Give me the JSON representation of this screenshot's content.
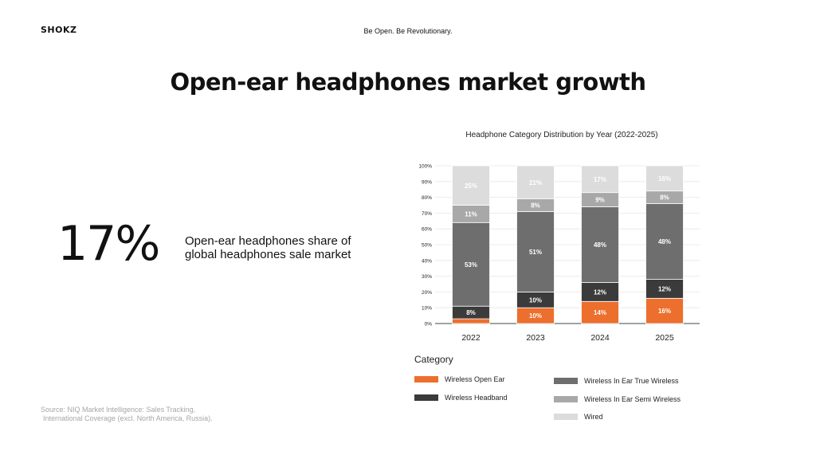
{
  "header": {
    "logo_text": "SHOKZ",
    "tagline": "Be Open. Be Revolutionary."
  },
  "title": "Open-ear headphones market growth",
  "stat": {
    "value": "17%",
    "description": "Open-ear headphones share of global headphones sale market"
  },
  "source": {
    "line1": "Source: NIQ Market Intelligence: Sales Tracking,",
    "line2": "International Coverage (excl. North America, Russia)."
  },
  "legend": {
    "title": "Category"
  },
  "colors": {
    "open_ear": "#ec6f2d",
    "headband": "#3b3b3b",
    "true_wireless": "#6e6e6e",
    "semi_wireless": "#a8a8a8",
    "wired": "#dcdcdc"
  },
  "chart_data": {
    "type": "bar",
    "stacked": true,
    "title": "Headphone Category Distribution by Year (2022-2025)",
    "categories": [
      "2022",
      "2023",
      "2024",
      "2025"
    ],
    "yticks": [
      "0%",
      "10%",
      "20%",
      "30%",
      "40%",
      "50%",
      "60%",
      "70%",
      "80%",
      "90%",
      "100%"
    ],
    "ylim": [
      0,
      100
    ],
    "grid": true,
    "legend_position": "bottom",
    "series": [
      {
        "name": "Wireless Open Ear",
        "color": "#ec6f2d",
        "text_color": "#ffffff",
        "values": [
          3,
          10,
          14,
          16
        ],
        "labels": [
          "",
          "10%",
          "14%",
          "16%"
        ]
      },
      {
        "name": "Wireless Headband",
        "color": "#3b3b3b",
        "text_color": "#ffffff",
        "values": [
          8,
          10,
          12,
          12
        ],
        "labels": [
          "8%",
          "10%",
          "12%",
          "12%"
        ]
      },
      {
        "name": "Wireless In Ear True Wireless",
        "color": "#6e6e6e",
        "text_color": "#ffffff",
        "values": [
          53,
          51,
          48,
          48
        ],
        "labels": [
          "53%",
          "51%",
          "48%",
          "48%"
        ]
      },
      {
        "name": "Wireless In Ear Semi Wireless",
        "color": "#a8a8a8",
        "text_color": "#ffffff",
        "values": [
          11,
          8,
          9,
          8
        ],
        "labels": [
          "11%",
          "8%",
          "9%",
          "8%"
        ]
      },
      {
        "name": "Wired",
        "color": "#dcdcdc",
        "text_color": "#ffffff",
        "values": [
          25,
          21,
          17,
          16
        ],
        "labels": [
          "25%",
          "21%",
          "17%",
          "16%"
        ]
      }
    ]
  }
}
